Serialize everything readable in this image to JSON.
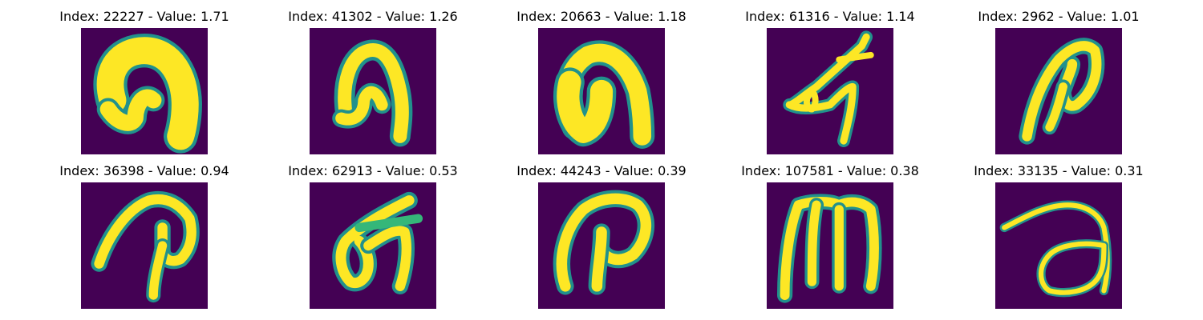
{
  "panels": [
    {
      "title": "Index: 22227 - Value: 1.71",
      "glyph": "blob-n"
    },
    {
      "title": "Index: 41302 - Value: 1.26",
      "glyph": "arch-n"
    },
    {
      "title": "Index: 20663 - Value: 1.18",
      "glyph": "blob-arch"
    },
    {
      "title": "Index: 61316 - Value: 1.14",
      "glyph": "slanted-k"
    },
    {
      "title": "Index: 2962 - Value: 1.01",
      "glyph": "slanted-p"
    },
    {
      "title": "Index: 36398 - Value: 0.94",
      "glyph": "hook-p"
    },
    {
      "title": "Index: 62913 - Value: 0.53",
      "glyph": "loop-k"
    },
    {
      "title": "Index: 44243 - Value: 0.39",
      "glyph": "wide-p"
    },
    {
      "title": "Index: 107581 - Value: 0.38",
      "glyph": "m-shape"
    },
    {
      "title": "Index: 33135 - Value: 0.31",
      "glyph": "loop-a"
    }
  ],
  "colors": {
    "background": "#440154",
    "stroke": "#fde725",
    "edge": "#21918c",
    "edge_soft": "#35b779"
  }
}
